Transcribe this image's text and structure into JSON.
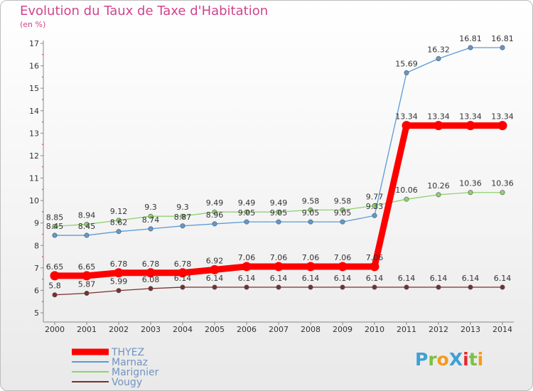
{
  "title": "Evolution du Taux de Taxe d'Habitation",
  "unit": "(en %)",
  "logo": {
    "text": "ProXiti",
    "colors": [
      "#3ea0d6",
      "#7ac143",
      "#f39b1c",
      "#3ea0d6",
      "#e7272f",
      "#7ac143",
      "#f39b1c"
    ]
  },
  "chart_data": {
    "type": "line",
    "title": "Evolution du Taux de Taxe d'Habitation",
    "ylabel": "(en %)",
    "xlabel": "",
    "x": [
      "2000",
      "2001",
      "2002",
      "2003",
      "2004",
      "2005",
      "2006",
      "2007",
      "2008",
      "2009",
      "2010",
      "2011",
      "2012",
      "2013",
      "2014"
    ],
    "ylim": [
      5,
      17
    ],
    "yticks": [
      "5",
      "6",
      "7",
      "8",
      "9",
      "10",
      "11",
      "12",
      "13",
      "14",
      "15",
      "16",
      "17"
    ],
    "grid": false,
    "legend": "bottom-left",
    "series": [
      {
        "name": "THYEZ",
        "color": "#ff0000",
        "values": [
          6.65,
          6.65,
          6.78,
          6.78,
          6.78,
          6.92,
          7.06,
          7.06,
          7.06,
          7.06,
          7.06,
          13.34,
          13.34,
          13.34,
          13.34
        ],
        "labels": [
          "6.65",
          "6.65",
          "6.78",
          "6.78",
          "6.78",
          "6.92",
          "7.06",
          "7.06",
          "7.06",
          "7.06",
          "7.06",
          "13.34",
          "13.34",
          "13.34",
          "13.34"
        ]
      },
      {
        "name": "Marnaz",
        "color": "#5b9bd5",
        "values": [
          8.45,
          8.45,
          8.62,
          8.74,
          8.87,
          8.96,
          9.05,
          9.05,
          9.05,
          9.05,
          9.33,
          15.69,
          16.32,
          16.81,
          16.81
        ],
        "labels": [
          "8.45",
          "8.45",
          "8.62",
          "8.74",
          "8.87",
          "8.96",
          "9.05",
          "9.05",
          "9.05",
          "9.05",
          "9.33",
          "15.69",
          "16.32",
          "16.81",
          "16.81"
        ]
      },
      {
        "name": "Marignier",
        "color": "#8fd16f",
        "values": [
          8.85,
          8.94,
          9.12,
          9.3,
          9.3,
          9.49,
          9.49,
          9.49,
          9.58,
          9.58,
          9.77,
          10.06,
          10.26,
          10.36,
          10.36
        ],
        "labels": [
          "8.85",
          "8.94",
          "9.12",
          "9.3",
          "9.3",
          "9.49",
          "9.49",
          "9.49",
          "9.58",
          "9.58",
          "9.77",
          "10.06",
          "10.26",
          "10.36",
          "10.36"
        ]
      },
      {
        "name": "Vougy",
        "color": "#7b2e2e",
        "values": [
          5.8,
          5.87,
          5.99,
          6.08,
          6.14,
          6.14,
          6.14,
          6.14,
          6.14,
          6.14,
          6.14,
          6.14,
          6.14,
          6.14,
          6.14
        ],
        "labels": [
          "5.8",
          "5.87",
          "5.99",
          "6.08",
          "6.14",
          "6.14",
          "6.14",
          "6.14",
          "6.14",
          "6.14",
          "6.14",
          "6.14",
          "6.14",
          "6.14",
          "6.14"
        ]
      }
    ]
  }
}
